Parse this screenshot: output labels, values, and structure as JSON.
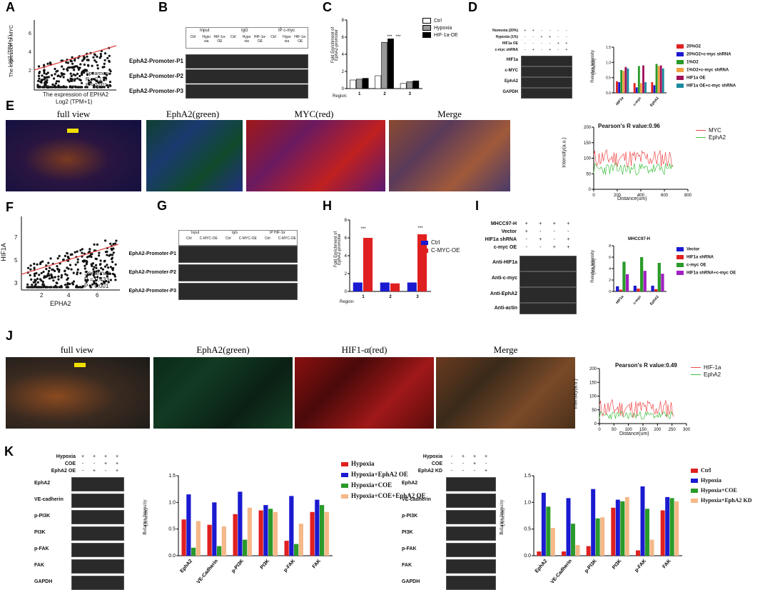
{
  "panels": {
    "A": "A",
    "B": "B",
    "C": "C",
    "D": "D",
    "E": "E",
    "F": "F",
    "G": "G",
    "H": "H",
    "I": "I",
    "J": "J",
    "K": "K"
  },
  "A": {
    "ylabel1": "The expression of MYC",
    "ylabel2": "Log2 (TPM+1)",
    "xlabel1": "The expression of EPHA2",
    "xlabel2": "Log2 (TPM+1)",
    "stat1": "Spearman",
    "stat2": "R = 0.179",
    "stat3": "P < 0.001",
    "xticks": [
      "2",
      "4",
      "6"
    ],
    "yticks": [
      "2",
      "4",
      "6"
    ]
  },
  "B": {
    "groups": [
      "Input",
      "IgG",
      "IP c-myc"
    ],
    "cols": [
      "Ctrl",
      "Hypo xia",
      "HIF-1α-OE",
      "Ctrl",
      "Hypo xia",
      "HIF-1α-OE",
      "Ctrl",
      "Hypo xia",
      "HIF-1α-OE"
    ],
    "rows": [
      "EphA2-Promoter-P1",
      "EphA2-Promoter-P2",
      "EphA2-Promoter-P3"
    ]
  },
  "C": {
    "ylabel1": "Fold Enrichment of",
    "ylabel2": "EphA2-promoter",
    "xtitle": "Region:",
    "legend": [
      "Ctrl",
      "Hypoxia",
      "HIF-1a-OE"
    ],
    "stars": [
      "***",
      "***"
    ]
  },
  "D": {
    "conditions": [
      {
        "label": "Nomoxia (20%)",
        "marks": [
          "+",
          "+",
          "-",
          "-",
          "-",
          "-"
        ]
      },
      {
        "label": "Hypoxia (1%)",
        "marks": [
          "-",
          "-",
          "+",
          "+",
          "-",
          "-"
        ]
      },
      {
        "label": "HIF1a OE",
        "marks": [
          "-",
          "-",
          "-",
          "-",
          "+",
          "+"
        ]
      },
      {
        "label": "c-myc shRNA",
        "marks": [
          "-",
          "+",
          "-",
          "+",
          "-",
          "+"
        ]
      }
    ],
    "blots": [
      "HIF1a",
      "c-MYC",
      "EphA2",
      "GAPDH"
    ],
    "ylabel1": "Relative Intensity",
    "ylabel2": "(X/actin)",
    "legend": [
      "20%O2",
      "20%O2+c-myc shRNA",
      "1%O2",
      "1%O2+c-myc shRNA",
      "HIF1a OE",
      "HIF1a OE+c-myc shRNA"
    ],
    "colors": [
      "#e02020",
      "#1a1ad0",
      "#2a9a2a",
      "#f0a040",
      "#a0105a",
      "#1a8aa0"
    ]
  },
  "E": {
    "titles": [
      "full view",
      "EphA2(green)",
      "MYC(red)",
      "Merge"
    ],
    "plot_title": "Pearson's R value:0.96",
    "ylabel": "Intensity(a.u.)",
    "xlabel": "Distance(um)",
    "legend": [
      "MYC",
      "EphA2"
    ]
  },
  "F": {
    "ylabel": "HIF1A",
    "xlabel": "EPHA2",
    "stat1": "Spearman",
    "stat2": "R = 0.433",
    "stat3": "P < 0.001",
    "xticks": [
      "2",
      "4",
      "6"
    ],
    "yticks": [
      "3",
      "5",
      "7"
    ]
  },
  "G": {
    "groups": [
      "Input",
      "IgG",
      "IP HIF-1α"
    ],
    "cols": [
      "Ctrl",
      "C-MYC-OE",
      "Ctrl",
      "C-MYC-OE",
      "Ctrl",
      "C-MYC-OE"
    ],
    "rows": [
      "EphA2-Promoter-P1",
      "EphA2-Promoter-P2",
      "EphA2-Promoter-P3"
    ]
  },
  "H": {
    "ylabel1": "Fold Enrichment of",
    "ylabel2": "EphA2-promoter",
    "xtitle": "Region:",
    "legend": [
      "Ctrl",
      "C-MYC-OE"
    ],
    "stars": [
      "***",
      "***"
    ]
  },
  "I": {
    "conditions": [
      {
        "label": "MHCC97-H",
        "marks": [
          "+",
          "+",
          "+",
          "+"
        ]
      },
      {
        "label": "Vector",
        "marks": [
          "+",
          "-",
          "-",
          "-"
        ]
      },
      {
        "label": "HIF1a shRNA",
        "marks": [
          "-",
          "+",
          "-",
          "+"
        ]
      },
      {
        "label": "c-myc OE",
        "marks": [
          "-",
          "-",
          "+",
          "+"
        ]
      }
    ],
    "blots": [
      "Anti-HIF1a",
      "Anti-c-myc",
      "Anti-EphA2",
      "Anti-actin"
    ],
    "plot_title": "MHCC97-H",
    "ylabel1": "Relative Intensity",
    "ylabel2": "(X/actin)",
    "legend": [
      "Vector",
      "HIF1a shRNA",
      "c-myc OE",
      "HIF1a shRNA+c-myc OE"
    ],
    "colors": [
      "#1a1ad0",
      "#e02020",
      "#2a9a2a",
      "#a020c0"
    ]
  },
  "J": {
    "titles": [
      "full view",
      "EphA2(green)",
      "HIF1-α(red)",
      "Merge"
    ],
    "plot_title": "Pearson's R value:0.49",
    "ylabel": "Intensity(a.u.)",
    "xlabel": "Distance(um)",
    "legend": [
      "HIF-1a",
      "EphA2"
    ]
  },
  "K1": {
    "conditions": [
      {
        "label": "Hypoxia",
        "marks": [
          "+",
          "+",
          "+",
          "+"
        ]
      },
      {
        "label": "COE",
        "marks": [
          "-",
          "-",
          "+",
          "+"
        ]
      },
      {
        "label": "EphA2 OE",
        "marks": [
          "-",
          "+",
          "-",
          "+"
        ]
      }
    ],
    "blots": [
      "EphA2",
      "VE-cadherin",
      "p-PI3K",
      "PI3K",
      "p-FAK",
      "FAK",
      "GAPDH"
    ],
    "ylabel1": "Relative Intensity",
    "ylabel2": "(X/actin)",
    "legend": [
      "Hypoxia",
      "Hypoxia+EphA2 OE",
      "Hypoxia+COE",
      "Hypoxia+COE+EphA2 OE"
    ],
    "colors": [
      "#e02020",
      "#1a1ad0",
      "#2a9a2a",
      "#f5b888"
    ]
  },
  "K2": {
    "conditions": [
      {
        "label": "Hypoxia",
        "marks": [
          "-",
          "+",
          "+",
          "+"
        ]
      },
      {
        "label": "COE",
        "marks": [
          "-",
          "-",
          "+",
          "-"
        ]
      },
      {
        "label": "EphA2 KD",
        "marks": [
          "-",
          "-",
          "-",
          "+"
        ]
      }
    ],
    "blots": [
      "EphA2",
      "VE-cadherin",
      "p-PI3K",
      "PI3K",
      "p-FAK",
      "FAK",
      "GAPDH"
    ],
    "ylabel1": "Relative Intensity",
    "ylabel2": "(X/actin)",
    "legend": [
      "Ctrl",
      "Hypoxia",
      "Hypoxia+COE",
      "Hypoxia+EphA2 KD"
    ],
    "colors": [
      "#e02020",
      "#1a1ad0",
      "#2a9a2a",
      "#f5b888"
    ]
  },
  "chart_data": [
    {
      "id": "C",
      "type": "bar",
      "categories": [
        "1",
        "2",
        "3"
      ],
      "series": [
        {
          "name": "Ctrl",
          "values": [
            1.0,
            1.5,
            0.6
          ]
        },
        {
          "name": "Hypoxia",
          "values": [
            1.1,
            5.4,
            0.8
          ]
        },
        {
          "name": "HIF-1a-OE",
          "values": [
            1.2,
            5.8,
            0.9
          ]
        }
      ],
      "ylim": [
        0,
        8
      ],
      "yticks": [
        "0",
        "2",
        "4",
        "6",
        "8"
      ]
    },
    {
      "id": "D",
      "type": "bar",
      "categories": [
        "HIF1a",
        "c-myc",
        "EphA2"
      ],
      "series": [
        {
          "name": "20%O2",
          "values": [
            0.38,
            0.32,
            0.35
          ]
        },
        {
          "name": "20%O2+c-myc shRNA",
          "values": [
            0.35,
            0.18,
            0.25
          ]
        },
        {
          "name": "1%O2",
          "values": [
            0.75,
            0.88,
            0.95
          ]
        },
        {
          "name": "1%O2+c-myc shRNA",
          "values": [
            0.72,
            0.32,
            0.88
          ]
        },
        {
          "name": "HIF1a OE",
          "values": [
            0.85,
            0.9,
            0.9
          ]
        },
        {
          "name": "HIF1a OE+c-myc shRNA",
          "values": [
            0.8,
            0.35,
            0.8
          ]
        }
      ],
      "ylim": [
        0,
        1.5
      ],
      "yticks": [
        "0.0",
        "0.5",
        "1.0",
        "1.5"
      ]
    },
    {
      "id": "H",
      "type": "bar",
      "categories": [
        "1",
        "2",
        "3"
      ],
      "series": [
        {
          "name": "Ctrl",
          "values": [
            1.0,
            1.0,
            1.0
          ]
        },
        {
          "name": "C-MYC-OE",
          "values": [
            6.0,
            0.9,
            6.4
          ]
        }
      ],
      "ylim": [
        0,
        8
      ],
      "yticks": [
        "0",
        "2",
        "4",
        "6",
        "8"
      ]
    },
    {
      "id": "I",
      "type": "bar",
      "categories": [
        "HIF1a",
        "c-myc",
        "EphA2"
      ],
      "series": [
        {
          "name": "Vector",
          "values": [
            0.9,
            1.0,
            1.0
          ]
        },
        {
          "name": "HIF1a shRNA",
          "values": [
            0.3,
            0.5,
            0.4
          ]
        },
        {
          "name": "c-myc OE",
          "values": [
            5.2,
            6.0,
            5.0
          ]
        },
        {
          "name": "HIF1a shRNA+c-myc OE",
          "values": [
            3.0,
            3.6,
            3.1
          ]
        }
      ],
      "ylim": [
        0,
        8
      ],
      "yticks": [
        "0",
        "2",
        "4",
        "6",
        "8"
      ]
    },
    {
      "id": "K1",
      "type": "bar",
      "categories": [
        "EphA2",
        "VE-Cadherin",
        "p-PI3K",
        "PI3K",
        "p-FAK",
        "FAK"
      ],
      "series": [
        {
          "name": "Hypoxia",
          "values": [
            0.68,
            0.58,
            0.78,
            0.85,
            0.28,
            0.82
          ]
        },
        {
          "name": "Hypoxia+EphA2 OE",
          "values": [
            1.15,
            1.0,
            1.2,
            0.95,
            1.12,
            1.05
          ]
        },
        {
          "name": "Hypoxia+COE",
          "values": [
            0.15,
            0.18,
            0.3,
            0.88,
            0.22,
            0.95
          ]
        },
        {
          "name": "Hypoxia+COE+EphA2 OE",
          "values": [
            0.65,
            0.55,
            0.9,
            0.82,
            0.6,
            0.82
          ]
        }
      ],
      "ylim": [
        0,
        1.5
      ],
      "yticks": [
        "0.0",
        "0.5",
        "1.0",
        "1.5"
      ]
    },
    {
      "id": "K2",
      "type": "bar",
      "categories": [
        "EphA2",
        "VE-Cadherin",
        "p-PI3K",
        "PI3K",
        "p-FAK",
        "FAK"
      ],
      "series": [
        {
          "name": "Ctrl",
          "values": [
            0.08,
            0.08,
            0.18,
            0.9,
            0.1,
            0.85
          ]
        },
        {
          "name": "Hypoxia",
          "values": [
            1.18,
            1.08,
            1.25,
            1.05,
            1.3,
            1.1
          ]
        },
        {
          "name": "Hypoxia+COE",
          "values": [
            0.92,
            0.6,
            0.7,
            1.02,
            0.88,
            1.08
          ]
        },
        {
          "name": "Hypoxia+EphA2 KD",
          "values": [
            0.52,
            0.2,
            0.72,
            1.1,
            0.3,
            1.02
          ]
        }
      ],
      "ylim": [
        0,
        1.5
      ],
      "yticks": [
        "0.0",
        "0.5",
        "1.0",
        "1.5"
      ]
    }
  ]
}
